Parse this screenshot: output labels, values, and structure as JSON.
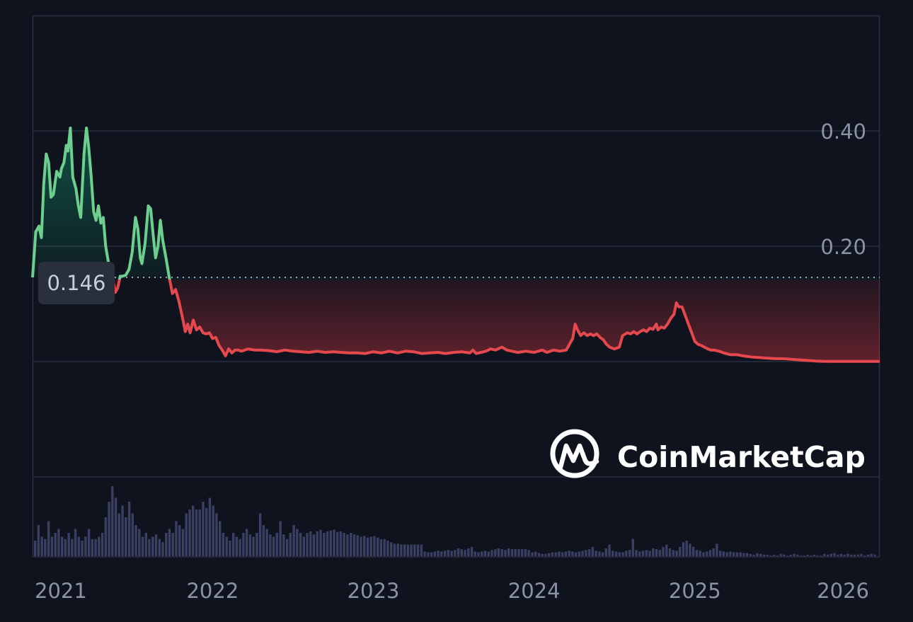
{
  "chart_data": {
    "type": "area",
    "x_unit": "year",
    "xlim": [
      2020.88,
      2026.15
    ],
    "ylim": [
      -0.2,
      0.6
    ],
    "reference": {
      "value": 0.146,
      "label": "0.146"
    },
    "y_ticks": [
      {
        "value": 0.4,
        "label": "0.40"
      },
      {
        "value": 0.2,
        "label": "0.20"
      }
    ],
    "x_ticks": [
      {
        "value": 2021,
        "label": "2021"
      },
      {
        "value": 2022,
        "label": "2022"
      },
      {
        "value": 2023,
        "label": "2023"
      },
      {
        "value": 2024,
        "label": "2024"
      },
      {
        "value": 2025,
        "label": "2025"
      },
      {
        "value": 2026,
        "label": "2026"
      }
    ],
    "colors": {
      "up": "#6ccf8e",
      "down": "#e5484d",
      "volume": "#3a3f63",
      "grid": "#2a3040",
      "background": "#0e131e",
      "tick_text": "#8a93a5"
    },
    "series": [
      {
        "values": [
          [
            2020.88,
            0.146
          ],
          [
            2020.9,
            0.225
          ],
          [
            2020.92,
            0.235
          ],
          [
            2020.935,
            0.215
          ],
          [
            2020.95,
            0.31
          ],
          [
            2020.965,
            0.36
          ],
          [
            2020.98,
            0.345
          ],
          [
            2020.995,
            0.285
          ],
          [
            2021.01,
            0.29
          ],
          [
            2021.03,
            0.33
          ],
          [
            2021.05,
            0.32
          ],
          [
            2021.06,
            0.335
          ],
          [
            2021.075,
            0.345
          ],
          [
            2021.09,
            0.375
          ],
          [
            2021.1,
            0.365
          ],
          [
            2021.115,
            0.405
          ],
          [
            2021.13,
            0.32
          ],
          [
            2021.15,
            0.3
          ],
          [
            2021.165,
            0.27
          ],
          [
            2021.18,
            0.25
          ],
          [
            2021.2,
            0.36
          ],
          [
            2021.215,
            0.405
          ],
          [
            2021.23,
            0.37
          ],
          [
            2021.245,
            0.32
          ],
          [
            2021.26,
            0.26
          ],
          [
            2021.275,
            0.245
          ],
          [
            2021.29,
            0.27
          ],
          [
            2021.305,
            0.24
          ],
          [
            2021.32,
            0.25
          ],
          [
            2021.335,
            0.2
          ],
          [
            2021.35,
            0.175
          ],
          [
            2021.365,
            0.146
          ],
          [
            2021.38,
            0.14
          ],
          [
            2021.395,
            0.12
          ],
          [
            2021.41,
            0.128
          ],
          [
            2021.425,
            0.148
          ],
          [
            2021.44,
            0.148
          ],
          [
            2021.46,
            0.15
          ],
          [
            2021.48,
            0.16
          ],
          [
            2021.5,
            0.19
          ],
          [
            2021.52,
            0.25
          ],
          [
            2021.535,
            0.23
          ],
          [
            2021.55,
            0.18
          ],
          [
            2021.56,
            0.17
          ],
          [
            2021.58,
            0.205
          ],
          [
            2021.6,
            0.27
          ],
          [
            2021.615,
            0.265
          ],
          [
            2021.63,
            0.22
          ],
          [
            2021.645,
            0.18
          ],
          [
            2021.66,
            0.2
          ],
          [
            2021.675,
            0.245
          ],
          [
            2021.69,
            0.21
          ],
          [
            2021.71,
            0.18
          ],
          [
            2021.73,
            0.146
          ],
          [
            2021.75,
            0.118
          ],
          [
            2021.77,
            0.125
          ],
          [
            2021.79,
            0.105
          ],
          [
            2021.81,
            0.08
          ],
          [
            2021.83,
            0.052
          ],
          [
            2021.845,
            0.065
          ],
          [
            2021.86,
            0.05
          ],
          [
            2021.88,
            0.072
          ],
          [
            2021.9,
            0.055
          ],
          [
            2021.92,
            0.06
          ],
          [
            2021.94,
            0.05
          ],
          [
            2021.96,
            0.048
          ],
          [
            2021.98,
            0.05
          ],
          [
            2022.0,
            0.04
          ],
          [
            2022.02,
            0.042
          ],
          [
            2022.04,
            0.028
          ],
          [
            2022.06,
            0.02
          ],
          [
            2022.08,
            0.01
          ],
          [
            2022.1,
            0.022
          ],
          [
            2022.12,
            0.015
          ],
          [
            2022.14,
            0.02
          ],
          [
            2022.16,
            0.02
          ],
          [
            2022.18,
            0.018
          ],
          [
            2022.22,
            0.022
          ],
          [
            2022.26,
            0.02
          ],
          [
            2022.3,
            0.02
          ],
          [
            2022.35,
            0.019
          ],
          [
            2022.4,
            0.017
          ],
          [
            2022.45,
            0.02
          ],
          [
            2022.5,
            0.018
          ],
          [
            2022.55,
            0.017
          ],
          [
            2022.6,
            0.016
          ],
          [
            2022.65,
            0.018
          ],
          [
            2022.7,
            0.016
          ],
          [
            2022.75,
            0.017
          ],
          [
            2022.8,
            0.016
          ],
          [
            2022.85,
            0.015
          ],
          [
            2022.9,
            0.015
          ],
          [
            2022.95,
            0.014
          ],
          [
            2023.0,
            0.017
          ],
          [
            2023.05,
            0.015
          ],
          [
            2023.1,
            0.018
          ],
          [
            2023.15,
            0.015
          ],
          [
            2023.2,
            0.018
          ],
          [
            2023.25,
            0.017
          ],
          [
            2023.3,
            0.014
          ],
          [
            2023.35,
            0.015
          ],
          [
            2023.4,
            0.016
          ],
          [
            2023.45,
            0.014
          ],
          [
            2023.5,
            0.016
          ],
          [
            2023.55,
            0.017
          ],
          [
            2023.6,
            0.015
          ],
          [
            2023.62,
            0.02
          ],
          [
            2023.64,
            0.014
          ],
          [
            2023.67,
            0.016
          ],
          [
            2023.7,
            0.018
          ],
          [
            2023.73,
            0.022
          ],
          [
            2023.76,
            0.02
          ],
          [
            2023.8,
            0.025
          ],
          [
            2023.83,
            0.02
          ],
          [
            2023.86,
            0.018
          ],
          [
            2023.9,
            0.016
          ],
          [
            2023.95,
            0.018
          ],
          [
            2024.0,
            0.016
          ],
          [
            2024.05,
            0.02
          ],
          [
            2024.08,
            0.016
          ],
          [
            2024.12,
            0.02
          ],
          [
            2024.16,
            0.018
          ],
          [
            2024.2,
            0.02
          ],
          [
            2024.22,
            0.03
          ],
          [
            2024.24,
            0.04
          ],
          [
            2024.255,
            0.065
          ],
          [
            2024.27,
            0.055
          ],
          [
            2024.29,
            0.045
          ],
          [
            2024.31,
            0.05
          ],
          [
            2024.33,
            0.045
          ],
          [
            2024.35,
            0.048
          ],
          [
            2024.37,
            0.045
          ],
          [
            2024.39,
            0.048
          ],
          [
            2024.41,
            0.042
          ],
          [
            2024.43,
            0.038
          ],
          [
            2024.45,
            0.03
          ],
          [
            2024.47,
            0.025
          ],
          [
            2024.5,
            0.022
          ],
          [
            2024.53,
            0.025
          ],
          [
            2024.55,
            0.045
          ],
          [
            2024.58,
            0.05
          ],
          [
            2024.6,
            0.048
          ],
          [
            2024.62,
            0.052
          ],
          [
            2024.64,
            0.048
          ],
          [
            2024.66,
            0.052
          ],
          [
            2024.68,
            0.055
          ],
          [
            2024.7,
            0.052
          ],
          [
            2024.72,
            0.058
          ],
          [
            2024.74,
            0.056
          ],
          [
            2024.76,
            0.065
          ],
          [
            2024.77,
            0.055
          ],
          [
            2024.79,
            0.06
          ],
          [
            2024.81,
            0.058
          ],
          [
            2024.83,
            0.065
          ],
          [
            2024.85,
            0.075
          ],
          [
            2024.87,
            0.082
          ],
          [
            2024.885,
            0.102
          ],
          [
            2024.9,
            0.095
          ],
          [
            2024.92,
            0.095
          ],
          [
            2024.94,
            0.08
          ],
          [
            2024.96,
            0.065
          ],
          [
            2024.98,
            0.05
          ],
          [
            2025.0,
            0.035
          ],
          [
            2025.02,
            0.03
          ],
          [
            2025.04,
            0.028
          ],
          [
            2025.06,
            0.025
          ],
          [
            2025.08,
            0.022
          ],
          [
            2025.1,
            0.02
          ],
          [
            2025.12,
            0.02
          ],
          [
            2025.15,
            0.018
          ],
          [
            2025.18,
            0.015
          ],
          [
            2025.22,
            0.012
          ],
          [
            2025.26,
            0.012
          ],
          [
            2025.3,
            0.01
          ],
          [
            2025.35,
            0.008
          ],
          [
            2025.4,
            0.007
          ],
          [
            2025.45,
            0.006
          ],
          [
            2025.5,
            0.005
          ],
          [
            2025.55,
            0.005
          ],
          [
            2025.6,
            0.004
          ],
          [
            2025.65,
            0.003
          ],
          [
            2025.7,
            0.002
          ],
          [
            2025.75,
            0.001
          ],
          [
            2025.8,
            0.0005
          ],
          [
            2025.85,
            0.0004
          ],
          [
            2025.9,
            0.0003
          ],
          [
            2026.0,
            0.0002
          ],
          [
            2026.1,
            0.0002
          ],
          [
            2026.15,
            0.0002
          ]
        ]
      }
    ],
    "volume": [
      0.2,
      0.4,
      0.25,
      0.22,
      0.45,
      0.25,
      0.3,
      0.35,
      0.25,
      0.22,
      0.3,
      0.22,
      0.35,
      0.25,
      0.2,
      0.25,
      0.35,
      0.22,
      0.22,
      0.25,
      0.3,
      0.5,
      0.7,
      0.9,
      0.75,
      0.55,
      0.65,
      0.5,
      0.7,
      0.55,
      0.4,
      0.35,
      0.25,
      0.3,
      0.22,
      0.25,
      0.28,
      0.22,
      0.18,
      0.3,
      0.35,
      0.3,
      0.45,
      0.4,
      0.35,
      0.55,
      0.6,
      0.65,
      0.6,
      0.6,
      0.7,
      0.62,
      0.75,
      0.65,
      0.55,
      0.45,
      0.3,
      0.25,
      0.2,
      0.3,
      0.25,
      0.22,
      0.3,
      0.35,
      0.28,
      0.25,
      0.3,
      0.55,
      0.4,
      0.35,
      0.28,
      0.25,
      0.3,
      0.45,
      0.28,
      0.22,
      0.3,
      0.4,
      0.35,
      0.3,
      0.25,
      0.3,
      0.32,
      0.28,
      0.32,
      0.34,
      0.3,
      0.32,
      0.33,
      0.34,
      0.31,
      0.32,
      0.3,
      0.28,
      0.3,
      0.28,
      0.27,
      0.25,
      0.26,
      0.24,
      0.25,
      0.26,
      0.24,
      0.22,
      0.22,
      0.2,
      0.18,
      0.16,
      0.16,
      0.15,
      0.15,
      0.15,
      0.15,
      0.15,
      0.15,
      0.15,
      0.06,
      0.05,
      0.05,
      0.06,
      0.07,
      0.06,
      0.07,
      0.08,
      0.07,
      0.08,
      0.1,
      0.09,
      0.08,
      0.1,
      0.12,
      0.06,
      0.05,
      0.06,
      0.07,
      0.06,
      0.08,
      0.09,
      0.1,
      0.09,
      0.08,
      0.1,
      0.09,
      0.09,
      0.09,
      0.09,
      0.09,
      0.08,
      0.05,
      0.06,
      0.04,
      0.03,
      0.03,
      0.04,
      0.05,
      0.05,
      0.06,
      0.05,
      0.06,
      0.07,
      0.06,
      0.05,
      0.06,
      0.07,
      0.08,
      0.09,
      0.12,
      0.07,
      0.06,
      0.05,
      0.1,
      0.15,
      0.07,
      0.06,
      0.05,
      0.05,
      0.07,
      0.08,
      0.22,
      0.08,
      0.06,
      0.07,
      0.08,
      0.07,
      0.1,
      0.09,
      0.08,
      0.12,
      0.15,
      0.1,
      0.08,
      0.07,
      0.12,
      0.18,
      0.2,
      0.16,
      0.12,
      0.08,
      0.07,
      0.05,
      0.06,
      0.08,
      0.1,
      0.16,
      0.07,
      0.06,
      0.05,
      0.06,
      0.05,
      0.05,
      0.05,
      0.04,
      0.04,
      0.03,
      0.02,
      0.04,
      0.03,
      0.02,
      0.02,
      0.01,
      0.02,
      0.01,
      0.03,
      0.02,
      0.01,
      0.02,
      0.03,
      0.02,
      0.01,
      0.01,
      0.02,
      0.01,
      0.02,
      0.01,
      0.01,
      0.03,
      0.02,
      0.03,
      0.04,
      0.02,
      0.03,
      0.02,
      0.03,
      0.02,
      0.02,
      0.02,
      0.03,
      0.01,
      0.02,
      0.03,
      0.02
    ],
    "watermark": {
      "text": "CoinMarketCap",
      "icon": "coinmarketcap-logo-icon"
    }
  }
}
